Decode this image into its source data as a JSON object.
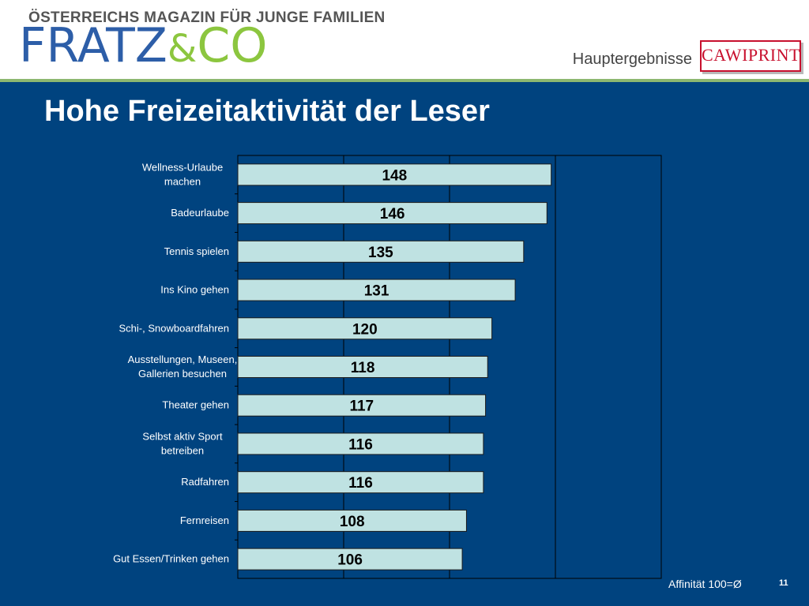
{
  "header": {
    "tagline": "ÖSTERREICHS MAGAZIN FÜR JUNGE FAMILIEN",
    "logo_part1": "FRATZ",
    "logo_part2": "&",
    "logo_part3": "CO",
    "section": "Hauptergebnisse",
    "partner_logo": "CAWIPRINT"
  },
  "slide": {
    "title": "Hohe Freizeitaktivität der Leser",
    "footnote": "Affinität 100=Ø",
    "page_number": "11"
  },
  "colors": {
    "background": "#00437f",
    "bar_fill": "#bfe2e2",
    "accent_green": "#8cc63f",
    "brand_blue": "#2d5ea8",
    "brand_red": "#c8102e"
  },
  "chart_data": {
    "type": "bar",
    "orientation": "horizontal",
    "categories": [
      [
        "Wellness-Urlaube",
        "machen"
      ],
      [
        "Badeurlaube"
      ],
      [
        "Tennis spielen"
      ],
      [
        "Ins Kino gehen"
      ],
      [
        "Schi-, Snowboardfahren"
      ],
      [
        "Ausstellungen, Museen,",
        "Gallerien besuchen"
      ],
      [
        "Theater gehen"
      ],
      [
        "Selbst aktiv Sport",
        "betreiben"
      ],
      [
        "Radfahren"
      ],
      [
        "Fernreisen"
      ],
      [
        "Gut Essen/Trinken gehen"
      ]
    ],
    "values": [
      148,
      146,
      135,
      131,
      120,
      118,
      117,
      116,
      116,
      108,
      106
    ],
    "xlim": [
      0,
      200
    ],
    "grid": true,
    "legend": "none",
    "data_labels": true
  }
}
